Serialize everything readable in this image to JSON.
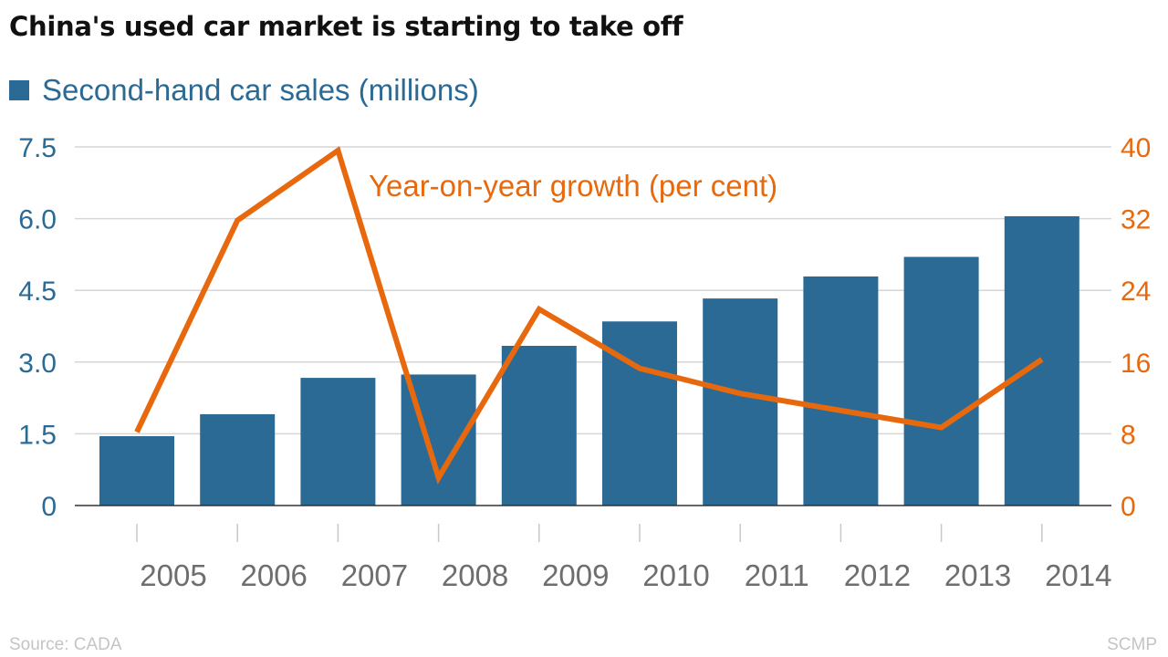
{
  "chart_data": {
    "type": "bar",
    "title": "China's used car market is starting to take off",
    "categories": [
      "2005",
      "2006",
      "2007",
      "2008",
      "2009",
      "2010",
      "2011",
      "2012",
      "2013",
      "2014"
    ],
    "series": [
      {
        "name": "Second-hand car sales (millions)",
        "type": "bar",
        "axis": "left",
        "color": "#2b6a94",
        "values": [
          1.45,
          1.91,
          2.67,
          2.74,
          3.34,
          3.85,
          4.33,
          4.79,
          5.2,
          6.05
        ]
      },
      {
        "name": "Year-on-year growth (per cent)",
        "type": "line",
        "axis": "right",
        "color": "#e8690d",
        "values": [
          8.2,
          31.8,
          39.6,
          3.1,
          21.9,
          15.3,
          12.5,
          10.6,
          8.7,
          16.3
        ]
      }
    ],
    "y_left": {
      "ylim": [
        0,
        7.5
      ],
      "ticks": [
        "0",
        "1.5",
        "3.0",
        "4.5",
        "6.0",
        "7.5"
      ],
      "color": "#2b6a94"
    },
    "y_right": {
      "ylim": [
        0,
        40
      ],
      "ticks": [
        "0",
        "8",
        "16",
        "24",
        "32",
        "40"
      ],
      "color": "#e8690d"
    },
    "legend": {
      "placement": "top-left"
    },
    "grid": true
  },
  "footer": {
    "source": "Source: CADA",
    "credit": "SCMP"
  }
}
